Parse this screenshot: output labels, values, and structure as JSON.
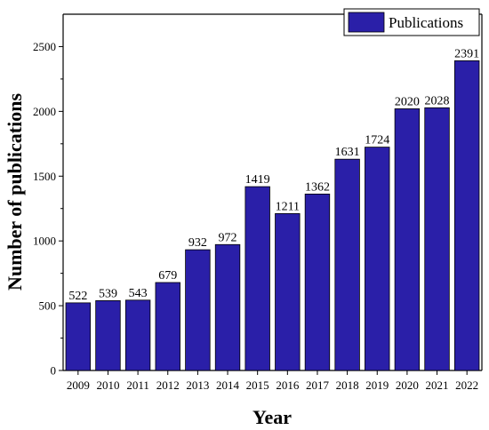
{
  "chart_data": {
    "type": "bar",
    "title": "",
    "xlabel": "Year",
    "ylabel": "Number of publications",
    "categories": [
      "2009",
      "2010",
      "2011",
      "2012",
      "2013",
      "2014",
      "2015",
      "2016",
      "2017",
      "2018",
      "2019",
      "2020",
      "2021",
      "2022"
    ],
    "series": [
      {
        "name": "Publications",
        "color": "#2a1fa8",
        "values": [
          522,
          539,
          543,
          679,
          932,
          972,
          1419,
          1211,
          1362,
          1631,
          1724,
          2020,
          2028,
          2391
        ]
      }
    ],
    "ylim": [
      0,
      2750
    ],
    "yticks": [
      0,
      500,
      1000,
      1500,
      2000,
      2500
    ],
    "grid": false,
    "legend_position": "top-right"
  }
}
